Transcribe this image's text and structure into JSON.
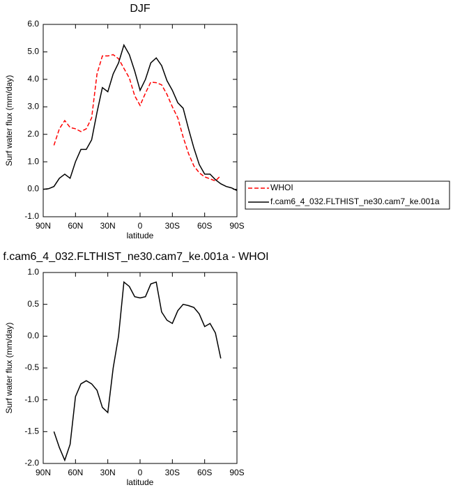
{
  "chart_data": [
    {
      "type": "line",
      "title": "DJF",
      "xlabel": "latitude",
      "ylabel": "Surf water flux (mm/day)",
      "x": [
        90,
        85,
        80,
        75,
        70,
        65,
        60,
        55,
        50,
        45,
        40,
        35,
        30,
        25,
        20,
        15,
        10,
        5,
        0,
        -5,
        -10,
        -15,
        -20,
        -25,
        -30,
        -35,
        -40,
        -45,
        -50,
        -55,
        -60,
        -65,
        -70,
        -75,
        -80,
        -85,
        -90
      ],
      "xlim": [
        90,
        -90
      ],
      "xticks": [
        {
          "value": 90,
          "label": "90N"
        },
        {
          "value": 60,
          "label": "60N"
        },
        {
          "value": 30,
          "label": "30N"
        },
        0,
        {
          "value": -30,
          "label": "30S"
        },
        {
          "value": -60,
          "label": "60S"
        },
        {
          "value": -90,
          "label": "90S"
        }
      ],
      "ylim": [
        -1,
        6
      ],
      "yticks": [
        {
          "value": -1,
          "label": "-1.0"
        },
        {
          "value": 0,
          "label": "0.0"
        },
        {
          "value": 1,
          "label": "1.0"
        },
        {
          "value": 2,
          "label": "2.0"
        },
        {
          "value": 3,
          "label": "3.0"
        },
        {
          "value": 4,
          "label": "4.0"
        },
        {
          "value": 5,
          "label": "5.0"
        },
        {
          "value": 6,
          "label": "6.0"
        }
      ],
      "legend": "outside-right",
      "series": [
        {
          "name": "WHOI",
          "color": "#ff0000",
          "line_style": "dashed",
          "values": [
            null,
            null,
            1.6,
            2.2,
            2.5,
            2.25,
            2.2,
            2.1,
            2.2,
            2.6,
            4.2,
            4.85,
            4.85,
            4.9,
            4.75,
            4.4,
            4.05,
            3.4,
            3.05,
            3.5,
            3.9,
            3.88,
            3.8,
            3.45,
            3.0,
            2.6,
            1.9,
            1.3,
            0.85,
            0.6,
            0.45,
            0.38,
            0.3,
            0.5,
            null,
            null,
            null
          ]
        },
        {
          "name": "f.cam6_4_032.FLTHIST_ne30.cam7_ke.001a",
          "color": "#000000",
          "line_style": "solid",
          "values": [
            0.0,
            0.02,
            0.1,
            0.4,
            0.55,
            0.4,
            1.0,
            1.45,
            1.45,
            1.8,
            2.8,
            3.7,
            3.55,
            4.2,
            4.6,
            5.25,
            4.9,
            4.3,
            3.6,
            4.0,
            4.6,
            4.78,
            4.5,
            3.95,
            3.6,
            3.15,
            2.95,
            2.2,
            1.5,
            0.9,
            0.55,
            0.55,
            0.35,
            0.2,
            0.1,
            0.05,
            -0.05
          ]
        }
      ]
    },
    {
      "type": "line",
      "title": "f.cam6_4_032.FLTHIST_ne30.cam7_ke.001a - WHOI",
      "xlabel": "latitude",
      "ylabel": "Surf water flux (mm/day)",
      "x": [
        90,
        85,
        80,
        75,
        70,
        65,
        60,
        55,
        50,
        45,
        40,
        35,
        30,
        25,
        20,
        15,
        10,
        5,
        0,
        -5,
        -10,
        -15,
        -20,
        -25,
        -30,
        -35,
        -40,
        -45,
        -50,
        -55,
        -60,
        -65,
        -70,
        -75,
        -80,
        -85,
        -90
      ],
      "xlim": [
        90,
        -90
      ],
      "xticks": [
        {
          "value": 90,
          "label": "90N"
        },
        {
          "value": 60,
          "label": "60N"
        },
        {
          "value": 30,
          "label": "30N"
        },
        0,
        {
          "value": -30,
          "label": "30S"
        },
        {
          "value": -60,
          "label": "60S"
        },
        {
          "value": -90,
          "label": "90S"
        }
      ],
      "ylim": [
        -2,
        1
      ],
      "yticks": [
        {
          "value": -2,
          "label": "-2.0"
        },
        -1.5,
        {
          "value": -1,
          "label": "-1.0"
        },
        -0.5,
        {
          "value": 0,
          "label": "0.0"
        },
        0.5,
        {
          "value": 1,
          "label": "1.0"
        }
      ],
      "series": [
        {
          "color": "#000000",
          "line_style": "solid",
          "values": [
            null,
            null,
            -1.5,
            -1.75,
            -1.95,
            -1.7,
            -0.95,
            -0.75,
            -0.7,
            -0.75,
            -0.85,
            -1.12,
            -1.2,
            -0.5,
            0.0,
            0.85,
            0.78,
            0.62,
            0.6,
            0.62,
            0.82,
            0.85,
            0.38,
            0.25,
            0.2,
            0.4,
            0.5,
            0.48,
            0.45,
            0.35,
            0.15,
            0.2,
            0.05,
            -0.35,
            null,
            null,
            null
          ]
        }
      ]
    }
  ]
}
